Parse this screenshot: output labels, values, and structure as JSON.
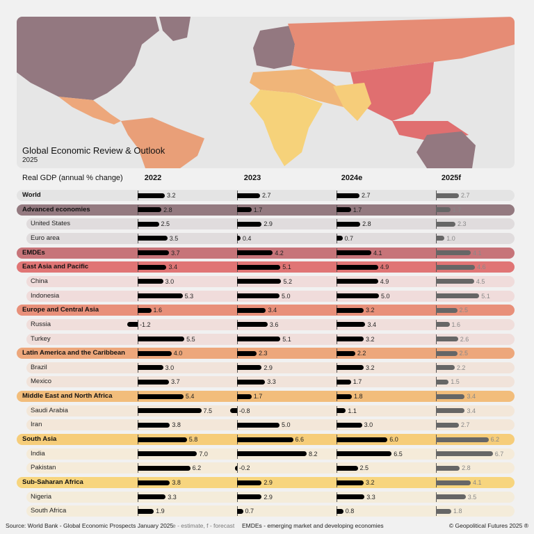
{
  "header": {
    "title": "Global Economic Review & Outlook",
    "subtitle": "2025"
  },
  "chart_data": {
    "type": "bar",
    "ylabel": "Real GDP (annual % change)",
    "columns": [
      "2022",
      "2023",
      "2024e",
      "2025f"
    ],
    "rows": [
      {
        "name": "World",
        "group": "world",
        "level": 0,
        "values": [
          3.2,
          2.7,
          2.7,
          2.7
        ]
      },
      {
        "name": "Advanced economies",
        "group": "adv",
        "level": 0,
        "values": [
          2.8,
          1.7,
          1.7,
          1.7
        ]
      },
      {
        "name": "United States",
        "group": "adv",
        "level": 1,
        "values": [
          2.5,
          2.9,
          2.8,
          2.3
        ]
      },
      {
        "name": "Euro area",
        "group": "adv",
        "level": 1,
        "values": [
          3.5,
          0.4,
          0.7,
          1.0
        ]
      },
      {
        "name": "EMDEs",
        "group": "emde",
        "level": 0,
        "values": [
          3.7,
          4.2,
          4.1,
          4.1
        ]
      },
      {
        "name": "East Asia and Pacific",
        "group": "eap",
        "level": 0,
        "values": [
          3.4,
          5.1,
          4.9,
          4.6
        ]
      },
      {
        "name": "China",
        "group": "eap",
        "level": 1,
        "values": [
          3.0,
          5.2,
          4.9,
          4.5
        ]
      },
      {
        "name": "Indonesia",
        "group": "eap",
        "level": 1,
        "values": [
          5.3,
          5.0,
          5.0,
          5.1
        ]
      },
      {
        "name": "Europe and Central Asia",
        "group": "eca",
        "level": 0,
        "values": [
          1.6,
          3.4,
          3.2,
          2.5
        ]
      },
      {
        "name": "Russia",
        "group": "eca",
        "level": 1,
        "values": [
          -1.2,
          3.6,
          3.4,
          1.6
        ]
      },
      {
        "name": "Turkey",
        "group": "eca",
        "level": 1,
        "values": [
          5.5,
          5.1,
          3.2,
          2.6
        ]
      },
      {
        "name": "Latin America and the Caribbean",
        "group": "lac",
        "level": 0,
        "values": [
          4.0,
          2.3,
          2.2,
          2.5
        ]
      },
      {
        "name": "Brazil",
        "group": "lac",
        "level": 1,
        "values": [
          3.0,
          2.9,
          3.2,
          2.2
        ]
      },
      {
        "name": "Mexico",
        "group": "lac",
        "level": 1,
        "values": [
          3.7,
          3.3,
          1.7,
          1.5
        ]
      },
      {
        "name": "Middle East and North Africa",
        "group": "mena",
        "level": 0,
        "values": [
          5.4,
          1.7,
          1.8,
          3.4
        ]
      },
      {
        "name": "Saudi Arabia",
        "group": "mena",
        "level": 1,
        "values": [
          7.5,
          -0.8,
          1.1,
          3.4
        ]
      },
      {
        "name": "Iran",
        "group": "mena",
        "level": 1,
        "values": [
          3.8,
          5.0,
          3.0,
          2.7
        ]
      },
      {
        "name": "South Asia",
        "group": "sa",
        "level": 0,
        "values": [
          5.8,
          6.6,
          6.0,
          6.2
        ]
      },
      {
        "name": "India",
        "group": "sa",
        "level": 1,
        "values": [
          7.0,
          8.2,
          6.5,
          6.7
        ]
      },
      {
        "name": "Pakistan",
        "group": "sa",
        "level": 1,
        "values": [
          6.2,
          -0.2,
          2.5,
          2.8
        ]
      },
      {
        "name": "Sub-Saharan Africa",
        "group": "ssa",
        "level": 0,
        "values": [
          3.8,
          2.9,
          3.2,
          4.1
        ]
      },
      {
        "name": "Nigeria",
        "group": "ssa",
        "level": 1,
        "values": [
          3.3,
          2.9,
          3.3,
          3.5
        ]
      },
      {
        "name": "South Africa",
        "group": "ssa",
        "level": 1,
        "values": [
          1.9,
          0.7,
          0.8,
          1.8
        ]
      }
    ],
    "colors": {
      "world": {
        "main": "#e4e4e4",
        "sub": "#e4e4e4"
      },
      "adv": {
        "main": "#947a80",
        "sub": "#e0dcdd"
      },
      "emde": {
        "main": "#c77479",
        "sub": "#f0dcdc"
      },
      "eap": {
        "main": "#e07575",
        "sub": "#f0dcdb"
      },
      "eca": {
        "main": "#e8907a",
        "sub": "#f0dedb"
      },
      "lac": {
        "main": "#eda77b",
        "sub": "#f1e3da"
      },
      "mena": {
        "main": "#f2bd7b",
        "sub": "#f3e7d9"
      },
      "sa": {
        "main": "#f6cd7a",
        "sub": "#f5ebd9"
      },
      "ssa": {
        "main": "#f7d57e",
        "sub": "#f4ecda"
      },
      "actual_bar": "#000000",
      "forecast_bar": "#666666"
    }
  },
  "footer": {
    "source": "Source: World Bank - Global Economic Prospects January 2025",
    "note": "e - estimate, f - forecast",
    "emde_note": "EMDEs - emerging market and developing economies",
    "copyright": "© Geopolitical Futures 2025 ®"
  }
}
